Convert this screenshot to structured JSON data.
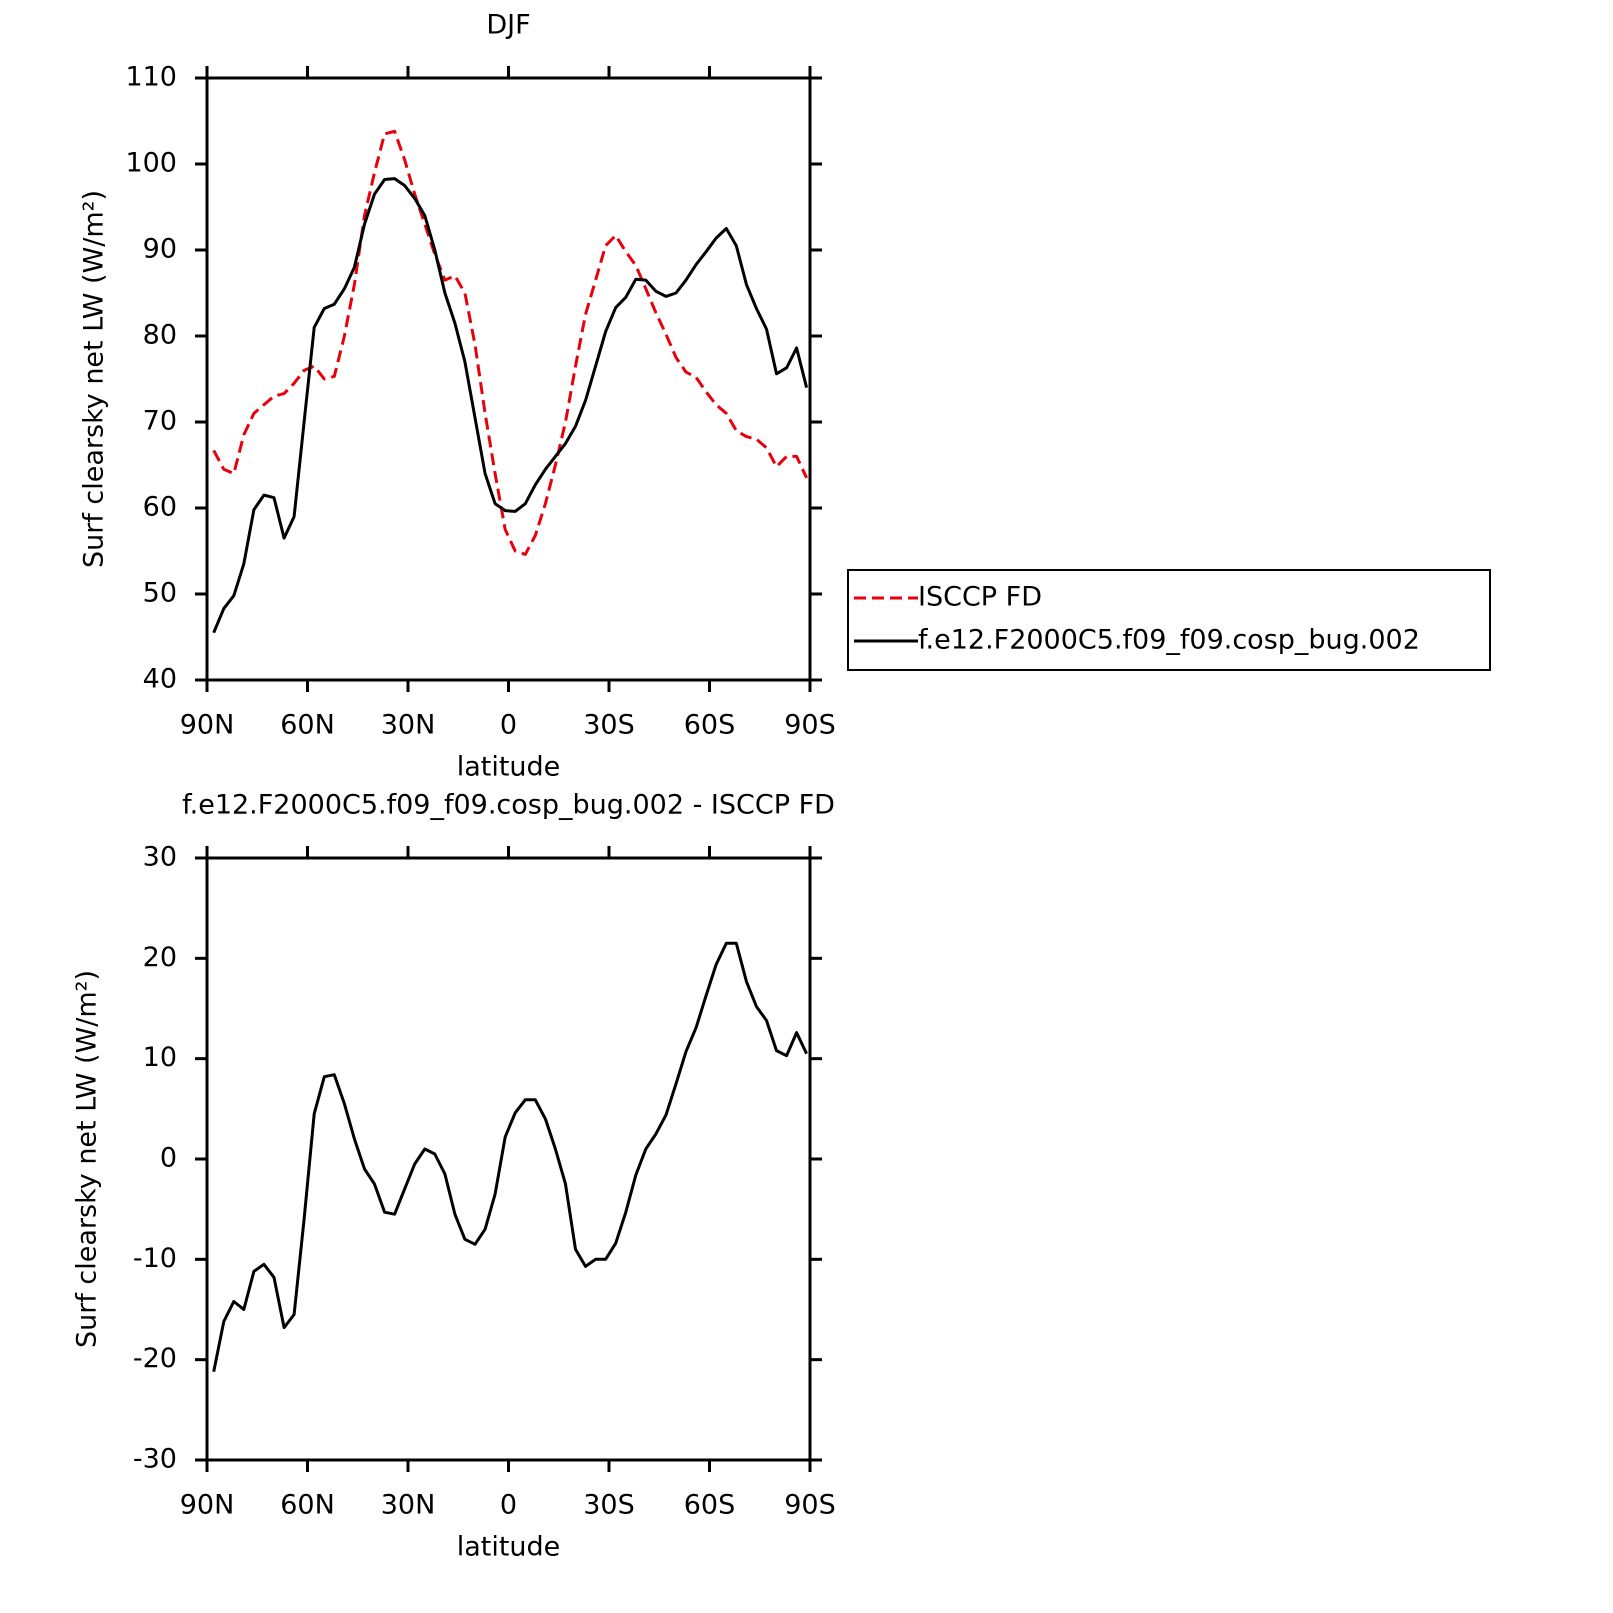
{
  "chart_data": [
    {
      "type": "line",
      "title": "DJF",
      "xlabel": "latitude",
      "ylabel": "Surf clearsky net LW (W/m²)",
      "x": [
        88,
        85,
        82,
        79,
        76,
        73,
        70,
        67,
        64,
        61,
        58,
        55,
        52,
        49,
        46,
        43,
        40,
        37,
        34,
        31,
        28,
        25,
        22,
        19,
        16,
        13,
        10,
        7,
        4,
        1,
        -2,
        -5,
        -8,
        -11,
        -14,
        -17,
        -20,
        -23,
        -26,
        -29,
        -32,
        -35,
        -38,
        -41,
        -44,
        -47,
        -50,
        -53,
        -56,
        -59,
        -62,
        -65,
        -68,
        -71,
        -74,
        -77,
        -80,
        -83,
        -86,
        -89
      ],
      "series": [
        {
          "name": "ISCCP FD",
          "color": "#e8000b",
          "dash": true,
          "values": [
            66.7,
            64.5,
            64,
            68.5,
            71,
            72,
            73,
            73.3,
            74.5,
            76,
            76.5,
            75,
            75.3,
            80,
            86,
            94,
            99,
            103.5,
            103.8,
            100.5,
            96.5,
            93,
            89.5,
            86.5,
            87,
            85,
            79,
            71,
            64,
            57.5,
            55,
            54.6,
            56.8,
            60.5,
            65,
            70,
            76.5,
            82.5,
            86.5,
            90.5,
            91.7,
            89.8,
            88.2,
            85.5,
            82.7,
            80.2,
            77.5,
            75.8,
            75.2,
            73.5,
            72,
            71,
            69,
            68.3,
            68,
            67,
            64.8,
            66,
            66,
            63.5
          ]
        },
        {
          "name": "f.e12.F2000C5.f09_f09.cosp_bug.002",
          "color": "#000000",
          "dash": false,
          "values": [
            45.5,
            48.3,
            49.8,
            53.5,
            59.8,
            61.5,
            61.2,
            56.5,
            59,
            70,
            81,
            83.2,
            83.7,
            85.5,
            88,
            93,
            96.5,
            98.2,
            98.3,
            97.5,
            96,
            94,
            90,
            85,
            81.5,
            77,
            70.5,
            64,
            60.5,
            59.7,
            59.6,
            60.5,
            62.7,
            64.5,
            66,
            67.5,
            69.5,
            72.5,
            76.5,
            80.5,
            83.3,
            84.5,
            86.6,
            86.5,
            85.2,
            84.6,
            85,
            86.5,
            88.3,
            89.8,
            91.4,
            92.5,
            90.5,
            86,
            83.2,
            80.8,
            75.6,
            76.3,
            78.6,
            74
          ]
        }
      ],
      "xlim": [
        90,
        -90
      ],
      "xticks": [
        {
          "value": 90,
          "label": "90N"
        },
        {
          "value": 60,
          "label": "60N"
        },
        {
          "value": 30,
          "label": "30N"
        },
        0,
        {
          "value": -30,
          "label": "30S"
        },
        {
          "value": -60,
          "label": "60S"
        },
        {
          "value": -90,
          "label": "90S"
        }
      ],
      "ylim": [
        40,
        110
      ],
      "yticks": [
        40,
        50,
        60,
        70,
        80,
        90,
        100,
        110
      ],
      "legend": "right"
    },
    {
      "type": "line",
      "title": "f.e12.F2000C5.f09_f09.cosp_bug.002 - ISCCP FD",
      "xlabel": "latitude",
      "ylabel": "Surf clearsky net LW (W/m²)",
      "x": [
        88,
        85,
        82,
        79,
        76,
        73,
        70,
        67,
        64,
        61,
        58,
        55,
        52,
        49,
        46,
        43,
        40,
        37,
        34,
        31,
        28,
        25,
        22,
        19,
        16,
        13,
        10,
        7,
        4,
        1,
        -2,
        -5,
        -8,
        -11,
        -14,
        -17,
        -20,
        -23,
        -26,
        -29,
        -32,
        -35,
        -38,
        -41,
        -44,
        -47,
        -50,
        -53,
        -56,
        -59,
        -62,
        -65,
        -68,
        -71,
        -74,
        -77,
        -80,
        -83,
        -86,
        -89
      ],
      "series": [
        {
          "color": "#000000",
          "dash": false,
          "values": [
            -21.2,
            -16.2,
            -14.2,
            -15,
            -11.2,
            -10.5,
            -11.8,
            -16.8,
            -15.5,
            -6,
            4.5,
            8.2,
            8.4,
            5.5,
            2,
            -1,
            -2.5,
            -5.3,
            -5.5,
            -3,
            -0.5,
            1,
            0.5,
            -1.5,
            -5.5,
            -8,
            -8.5,
            -7,
            -3.5,
            2.2,
            4.6,
            5.9,
            5.9,
            4,
            1,
            -2.5,
            -9,
            -10.7,
            -10,
            -10,
            -8.4,
            -5.3,
            -1.6,
            1,
            2.5,
            4.4,
            7.5,
            10.7,
            13.1,
            16.3,
            19.4,
            21.5,
            21.5,
            17.7,
            15.2,
            13.8,
            10.8,
            10.3,
            12.6,
            10.5
          ]
        }
      ],
      "xlim": [
        90,
        -90
      ],
      "xticks": [
        {
          "value": 90,
          "label": "90N"
        },
        {
          "value": 60,
          "label": "60N"
        },
        {
          "value": 30,
          "label": "30N"
        },
        0,
        {
          "value": -30,
          "label": "30S"
        },
        {
          "value": -60,
          "label": "60S"
        },
        {
          "value": -90,
          "label": "90S"
        }
      ],
      "ylim": [
        -30,
        30
      ],
      "yticks": [
        -30,
        -20,
        -10,
        0,
        10,
        20,
        30
      ]
    }
  ]
}
